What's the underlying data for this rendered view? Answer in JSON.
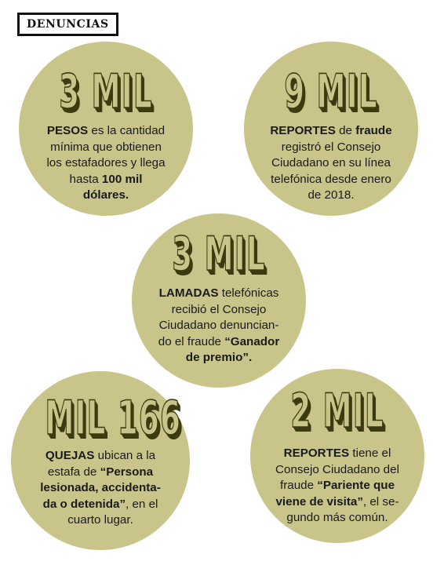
{
  "header": {
    "label": "DENUNCIAS"
  },
  "items": [
    {
      "number": "3 MIL",
      "lines": [
        [
          {
            "b": "PESOS"
          },
          {
            "t": " es la cantidad"
          }
        ],
        [
          {
            "t": "mínima que obtienen"
          }
        ],
        [
          {
            "t": "los estafadores y llega"
          }
        ],
        [
          {
            "t": "hasta "
          },
          {
            "b": "100 mil"
          }
        ],
        [
          {
            "b": "dólares."
          }
        ]
      ]
    },
    {
      "number": "9 MIL",
      "lines": [
        [
          {
            "b": "REPORTES"
          },
          {
            "t": " de "
          },
          {
            "b": "fraude"
          }
        ],
        [
          {
            "t": "registró el Consejo"
          }
        ],
        [
          {
            "t": "Ciudadano en su línea"
          }
        ],
        [
          {
            "t": "telefónica desde enero"
          }
        ],
        [
          {
            "t": "de 2018."
          }
        ]
      ]
    },
    {
      "number": "3 MIL",
      "lines": [
        [
          {
            "b": "LAMADAS"
          },
          {
            "t": " telefónicas"
          }
        ],
        [
          {
            "t": "recibió el Consejo"
          }
        ],
        [
          {
            "t": "Ciudadano denuncian-"
          }
        ],
        [
          {
            "t": "do el fraude "
          },
          {
            "b": "“Ganador"
          }
        ],
        [
          {
            "b": "de premio”."
          }
        ]
      ]
    },
    {
      "number": "MIL 166",
      "lines": [
        [
          {
            "b": "QUEJAS"
          },
          {
            "t": " ubican a la"
          }
        ],
        [
          {
            "t": "estafa de "
          },
          {
            "b": "“Persona"
          }
        ],
        [
          {
            "b": "lesionada, accidenta-"
          }
        ],
        [
          {
            "b": "da o detenida”"
          },
          {
            "t": ", en el"
          }
        ],
        [
          {
            "t": "cuarto lugar."
          }
        ]
      ]
    },
    {
      "number": "2 MIL",
      "lines": [
        [
          {
            "b": "REPORTES"
          },
          {
            "t": " tiene el"
          }
        ],
        [
          {
            "t": "Consejo Ciudadano del"
          }
        ],
        [
          {
            "t": "fraude "
          },
          {
            "b": "“Pariente que"
          }
        ],
        [
          {
            "b": "viene de visita”"
          },
          {
            "t": ", el se-"
          }
        ],
        [
          {
            "t": "gundo más común."
          }
        ]
      ]
    }
  ]
}
